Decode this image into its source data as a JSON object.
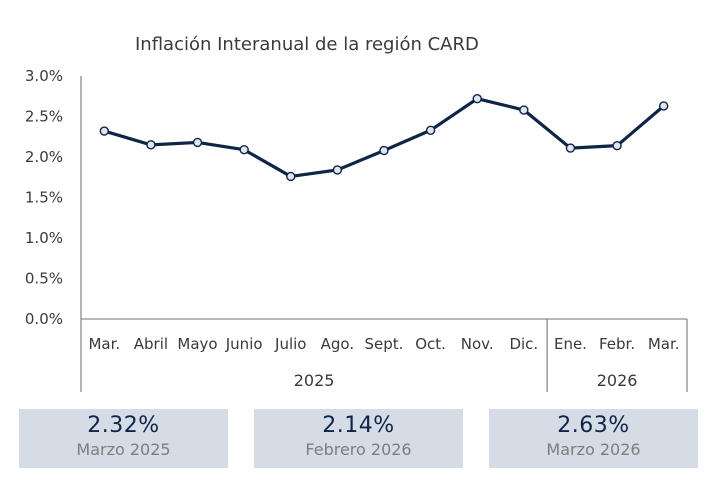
{
  "chart_data": {
    "type": "line",
    "title": "Inflación Interanual de la región CARD",
    "categories": [
      "Mar.",
      "Abril",
      "Mayo",
      "Junio",
      "Julio",
      "Ago.",
      "Sept.",
      "Oct.",
      "Nov.",
      "Dic.",
      "Ene.",
      "Febr.",
      "Mar."
    ],
    "groups": [
      {
        "label": "2025",
        "categories": 10
      },
      {
        "label": "2026",
        "categories": 3
      }
    ],
    "series": [
      {
        "values": [
          2.32,
          2.15,
          2.18,
          2.09,
          1.76,
          1.84,
          2.08,
          2.33,
          2.72,
          2.58,
          2.11,
          2.14,
          2.63
        ]
      }
    ],
    "ylim": [
      0,
      3.0
    ],
    "yticks": [
      "0.0%",
      "0.5%",
      "1.0%",
      "1.5%",
      "2.0%",
      "2.5%",
      "3.0%"
    ],
    "ytick_values": [
      0,
      0.5,
      1.0,
      1.5,
      2.0,
      2.5,
      3.0
    ],
    "grid": false,
    "line_color": "#0f2447",
    "marker_fill": "#dfe6f0"
  },
  "cards": [
    {
      "value": "2.32%",
      "label": "Marzo 2025"
    },
    {
      "value": "2.14%",
      "label": "Febrero 2026"
    },
    {
      "value": "2.63%",
      "label": "Marzo 2026"
    }
  ],
  "colors": {
    "card_bg": "#d5dce5",
    "axis": "#8c8c8c",
    "text": "#3a3a3a"
  }
}
